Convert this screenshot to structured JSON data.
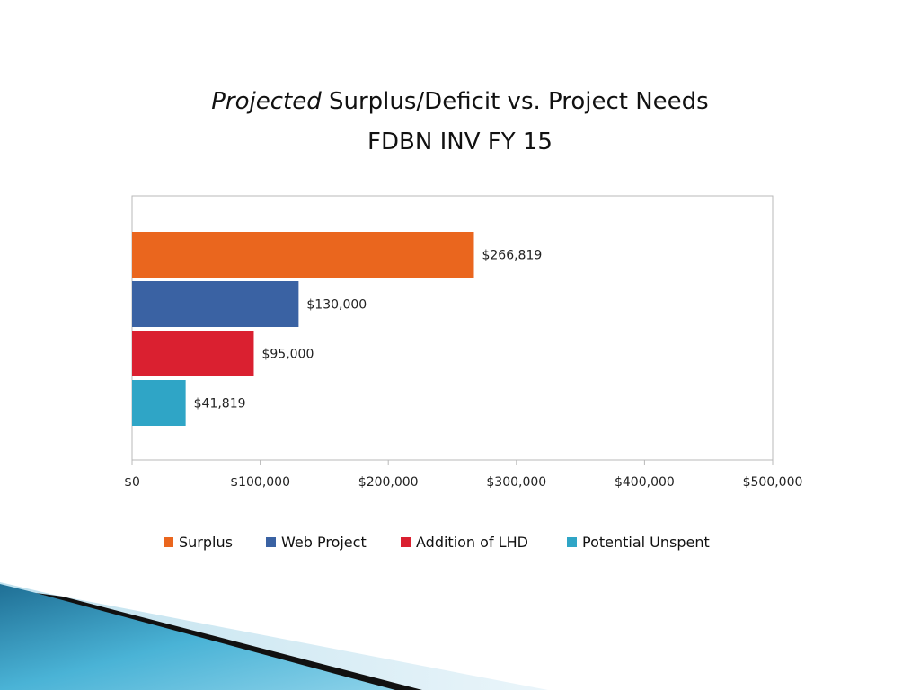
{
  "slide": {
    "title_italic": "Projected",
    "title_rest": " Surplus/Deficit vs. Project Needs",
    "subtitle": "FDBN INV FY 15"
  },
  "chart_data": {
    "type": "bar",
    "orientation": "horizontal",
    "categories": [
      "Surplus",
      "Web Project",
      "Addition of LHD",
      "Potential Unspent"
    ],
    "values": [
      266819,
      130000,
      95000,
      41819
    ],
    "data_labels": [
      "$266,819",
      "$130,000",
      "$95,000",
      "$41,819"
    ],
    "colors": [
      "#EA661E",
      "#3A62A3",
      "#DA2030",
      "#2FA5C6"
    ],
    "xlim": [
      0,
      500000
    ],
    "x_ticks": [
      0,
      100000,
      200000,
      300000,
      400000,
      500000
    ],
    "x_tick_labels": [
      "$0",
      "$100,000",
      "$200,000",
      "$300,000",
      "$400,000",
      "$500,000"
    ],
    "grid": false,
    "legend_position": "bottom",
    "legend": [
      "Surplus",
      "Web Project",
      "Addition of LHD",
      "Potential Unspent"
    ]
  }
}
